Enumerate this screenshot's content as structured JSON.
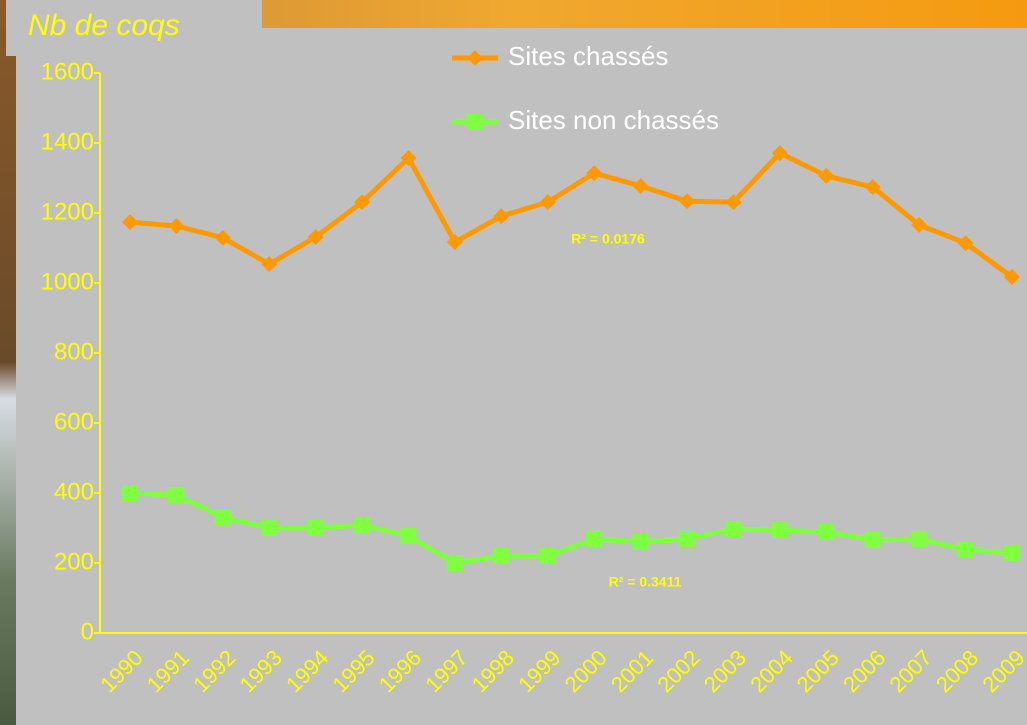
{
  "chart_data": {
    "type": "line",
    "title": "Nb de coqs",
    "categories": [
      "1990",
      "1991",
      "1992",
      "1993",
      "1994",
      "1995",
      "1996",
      "1997",
      "1998",
      "1999",
      "2000",
      "2001",
      "2002",
      "2003",
      "2004",
      "2005",
      "2006",
      "2007",
      "2008",
      "2009"
    ],
    "series": [
      {
        "name": "Sites chassés",
        "color": "#ff9900",
        "marker": "diamond",
        "values": [
          1174,
          1163,
          1129,
          1054,
          1131,
          1231,
          1357,
          1117,
          1191,
          1231,
          1314,
          1277,
          1234,
          1231,
          1371,
          1306,
          1274,
          1166,
          1114,
          1017
        ]
      },
      {
        "name": "Sites non chassés",
        "color": "#80ff40",
        "marker": "square",
        "values": [
          400,
          394,
          331,
          300,
          300,
          309,
          277,
          200,
          220,
          220,
          269,
          260,
          269,
          297,
          294,
          289,
          266,
          269,
          237,
          229
        ]
      }
    ],
    "annotations": [
      "R² = 0.0176",
      "R² = 0.3411"
    ],
    "ylim": [
      0,
      1600
    ],
    "yticks": [
      0,
      200,
      400,
      600,
      800,
      1000,
      1200,
      1400,
      1600
    ],
    "grid": false,
    "legend": "top"
  }
}
